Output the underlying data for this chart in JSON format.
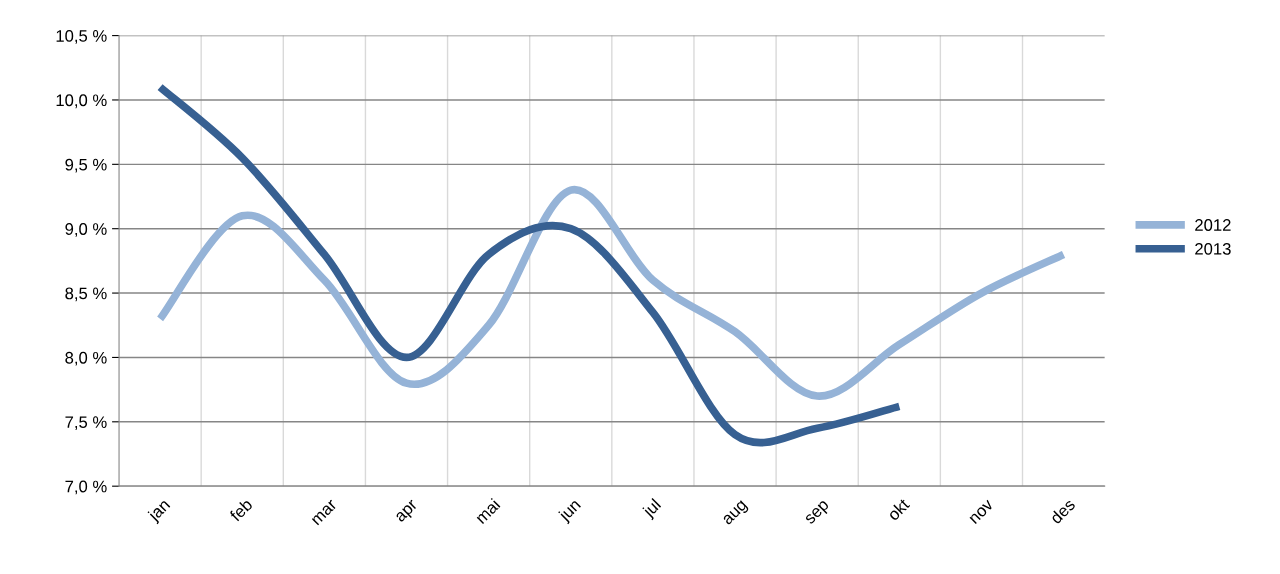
{
  "chart_data": {
    "type": "line",
    "categories": [
      "jan",
      "feb",
      "mar",
      "apr",
      "mai",
      "jun",
      "jul",
      "aug",
      "sep",
      "okt",
      "nov",
      "des"
    ],
    "series": [
      {
        "name": "2012",
        "color": "#95b3d7",
        "values": [
          8.3,
          9.1,
          8.6,
          7.8,
          8.25,
          9.3,
          8.6,
          8.2,
          7.7,
          8.1,
          8.5,
          8.8
        ]
      },
      {
        "name": "2013",
        "color": "#376092",
        "values": [
          10.1,
          9.55,
          8.8,
          8.0,
          8.8,
          9.0,
          8.35,
          7.4,
          7.45,
          7.62,
          null,
          null
        ]
      }
    ],
    "ylim": [
      7.0,
      10.5
    ],
    "yticks": [
      {
        "value": 7.0,
        "label": "7,0 %"
      },
      {
        "value": 7.5,
        "label": "7,5 %"
      },
      {
        "value": 8.0,
        "label": "8,0 %"
      },
      {
        "value": 8.5,
        "label": "8,5 %"
      },
      {
        "value": 9.0,
        "label": "9,0 %"
      },
      {
        "value": 9.5,
        "label": "9,5 %"
      },
      {
        "value": 10.0,
        "label": "10,0 %"
      },
      {
        "value": 10.5,
        "label": "10,5 %"
      }
    ],
    "grid": true,
    "legend": "right",
    "marker": "none",
    "line_style": "solid"
  }
}
